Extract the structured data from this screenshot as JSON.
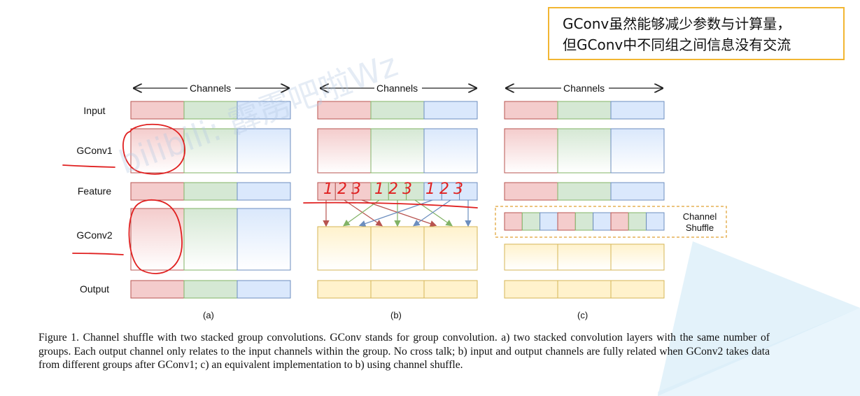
{
  "annotation": {
    "line1": "GConv虽然能够减少参数与计算量，",
    "line2": "但GConv中不同组之间信息没有交流"
  },
  "colors": {
    "red_fill": "#f4cccc",
    "red_stroke": "#b85450",
    "green_fill": "#d5e8d4",
    "green_stroke": "#82b366",
    "blue_fill": "#dae8fc",
    "blue_stroke": "#6c8ebf",
    "yellow_fill": "#fff2cc",
    "yellow_stroke": "#d6b656",
    "ink_red": "#e02020",
    "callout_border": "#f2b632"
  },
  "diagram": {
    "row_labels": [
      "Input",
      "GConv1",
      "Feature",
      "GConv2",
      "Output"
    ],
    "channels_label": "Channels",
    "sub_labels": [
      "(a)",
      "(b)",
      "(c)"
    ],
    "channel_shuffle_label": [
      "Channel",
      "Shuffle"
    ],
    "handwritten_numbers": "123 123 123"
  },
  "caption": "Figure 1. Channel shuffle with two stacked group convolutions. GConv stands for group convolution. a) two stacked convolution layers with the same number of groups. Each output channel only relates to the input channels within the group. No cross talk; b) input and output channels are fully related when GConv2 takes data from different groups after GConv1; c) an equivalent implementation to b) using channel shuffle.",
  "watermark": "bilibili: 霹雳吧啦Wz"
}
